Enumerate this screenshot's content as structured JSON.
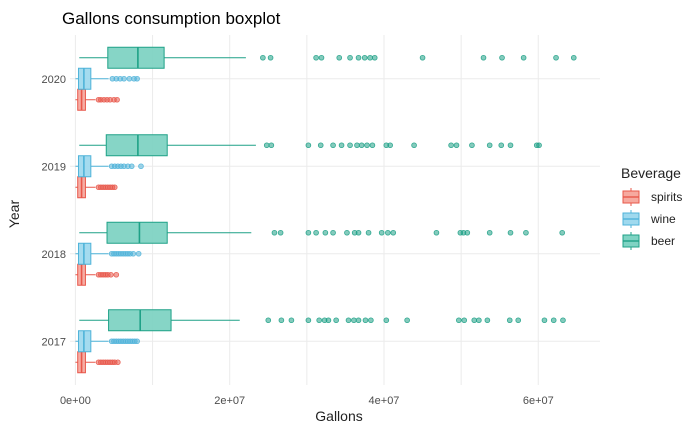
{
  "chart_data": {
    "type": "boxplot",
    "orientation": "horizontal",
    "title": "Gallons consumption boxplot",
    "xlabel": "Gallons",
    "ylabel": "Year",
    "xlim": [
      -700000,
      68000000
    ],
    "xticks": [
      0,
      20000000,
      40000000,
      60000000
    ],
    "xtick_labels": [
      "0e+00",
      "2e+07",
      "4e+07",
      "6e+07"
    ],
    "categories": [
      "2017",
      "2018",
      "2019",
      "2020"
    ],
    "grid": true,
    "legend": {
      "title": "Beverage",
      "placement": "right",
      "entries": [
        "spirits",
        "wine",
        "beer"
      ]
    },
    "series": [
      {
        "name": "spirits",
        "color": "#e8574a",
        "fill": "#f6a99f",
        "boxes": {
          "2017": {
            "min": 0,
            "q1": 300000,
            "median": 800000,
            "q3": 1300000,
            "max": 2600000,
            "outliers": [
              3000000,
              3300000,
              3600000,
              3900000,
              4200000,
              4500000,
              4800000,
              5100000,
              5500000
            ]
          },
          "2018": {
            "min": 0,
            "q1": 300000,
            "median": 800000,
            "q3": 1300000,
            "max": 2600000,
            "outliers": [
              3000000,
              3300000,
              3600000,
              3900000,
              4200000,
              4600000,
              5300000
            ]
          },
          "2019": {
            "min": 0,
            "q1": 300000,
            "median": 800000,
            "q3": 1300000,
            "max": 2600000,
            "outliers": [
              3000000,
              3300000,
              3600000,
              3900000,
              4200000,
              4500000,
              4800000,
              5100000
            ]
          },
          "2020": {
            "min": 0,
            "q1": 300000,
            "median": 800000,
            "q3": 1300000,
            "max": 2600000,
            "outliers": [
              3000000,
              3300000,
              3700000,
              4100000,
              4500000,
              5000000,
              5400000
            ]
          }
        }
      },
      {
        "name": "wine",
        "color": "#4fb3d9",
        "fill": "#9fd9ee",
        "boxes": {
          "2017": {
            "min": 0,
            "q1": 400000,
            "median": 1100000,
            "q3": 2000000,
            "max": 4300000,
            "outliers": [
              4700000,
              5000000,
              5300000,
              5600000,
              5900000,
              6200000,
              6500000,
              6800000,
              7100000,
              7400000,
              7700000,
              8000000
            ]
          },
          "2018": {
            "min": 0,
            "q1": 400000,
            "median": 1100000,
            "q3": 2000000,
            "max": 4300000,
            "outliers": [
              4700000,
              5000000,
              5300000,
              5600000,
              5900000,
              6200000,
              6500000,
              6800000,
              7100000,
              7500000,
              8200000
            ]
          },
          "2019": {
            "min": 0,
            "q1": 400000,
            "median": 1100000,
            "q3": 2000000,
            "max": 4300000,
            "outliers": [
              4700000,
              5100000,
              5500000,
              5900000,
              6300000,
              6800000,
              7300000,
              8500000
            ]
          },
          "2020": {
            "min": 0,
            "q1": 400000,
            "median": 1100000,
            "q3": 2000000,
            "max": 4300000,
            "outliers": [
              4800000,
              5300000,
              5800000,
              6300000,
              7000000,
              7600000,
              8000000
            ]
          }
        }
      },
      {
        "name": "beer",
        "color": "#1fa187",
        "fill": "#7fd3c3",
        "boxes": {
          "2017": {
            "min": 500000,
            "q1": 4300000,
            "median": 8400000,
            "q3": 12400000,
            "max": 21300000,
            "outliers": [
              25000000,
              26700000,
              28000000,
              30200000,
              31600000,
              32300000,
              32800000,
              33800000,
              35400000,
              36100000,
              36700000,
              37600000,
              38300000,
              40300000,
              43000000,
              49700000,
              50400000,
              51700000,
              52300000,
              53400000,
              56300000,
              57400000,
              60800000,
              62000000,
              63200000
            ]
          },
          "2018": {
            "min": 500000,
            "q1": 4100000,
            "median": 8300000,
            "q3": 11900000,
            "max": 22800000,
            "outliers": [
              25800000,
              26600000,
              30200000,
              31200000,
              32400000,
              33400000,
              35200000,
              36200000,
              36700000,
              38000000,
              39700000,
              40500000,
              41200000,
              46800000,
              49900000,
              50300000,
              50800000,
              53700000,
              56400000,
              58400000,
              63100000
            ]
          },
          "2019": {
            "min": 500000,
            "q1": 4000000,
            "median": 8100000,
            "q3": 11900000,
            "max": 23400000,
            "outliers": [
              24800000,
              25400000,
              30200000,
              31800000,
              33400000,
              34500000,
              35600000,
              36500000,
              37100000,
              37800000,
              38500000,
              40300000,
              40800000,
              43900000,
              48700000,
              49400000,
              51400000,
              53700000,
              55200000,
              56400000,
              59800000,
              60100000
            ]
          },
          "2020": {
            "min": 500000,
            "q1": 4200000,
            "median": 8100000,
            "q3": 11500000,
            "max": 22100000,
            "outliers": [
              24300000,
              25300000,
              31200000,
              31900000,
              34200000,
              35600000,
              36700000,
              37500000,
              38200000,
              38800000,
              45000000,
              52900000,
              55300000,
              58100000,
              62300000,
              64600000
            ]
          }
        }
      }
    ]
  }
}
